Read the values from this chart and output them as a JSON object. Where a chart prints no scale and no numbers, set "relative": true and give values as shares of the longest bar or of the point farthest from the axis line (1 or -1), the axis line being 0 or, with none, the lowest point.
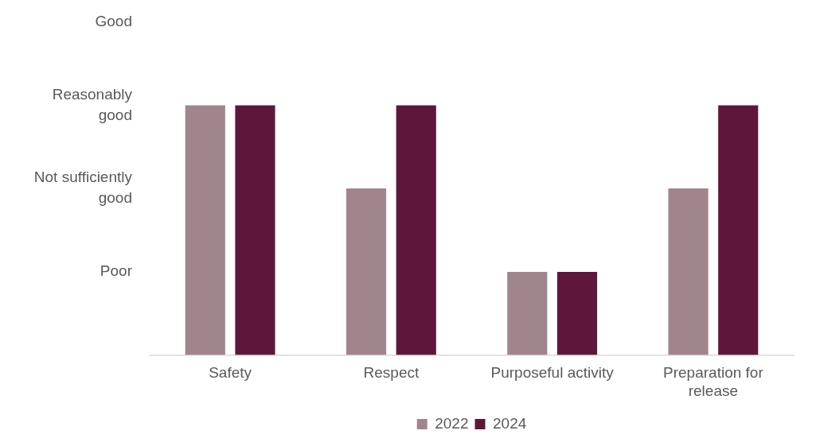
{
  "chart_data": {
    "type": "bar",
    "relative": true,
    "categories": [
      "Safety",
      "Respect",
      "Purposeful activity",
      "Preparation for release"
    ],
    "series": [
      {
        "name": "2022",
        "color": "#a0858c",
        "values": [
          1,
          0.667,
          0.333,
          0.667
        ]
      },
      {
        "name": "2024",
        "color": "#5e1738",
        "values": [
          1,
          1,
          0.333,
          1
        ]
      }
    ],
    "annotations": [
      "Poor",
      "Not sufficiently good",
      "Reasonably good",
      "Good"
    ],
    "grid": false,
    "legend": "bottom"
  }
}
